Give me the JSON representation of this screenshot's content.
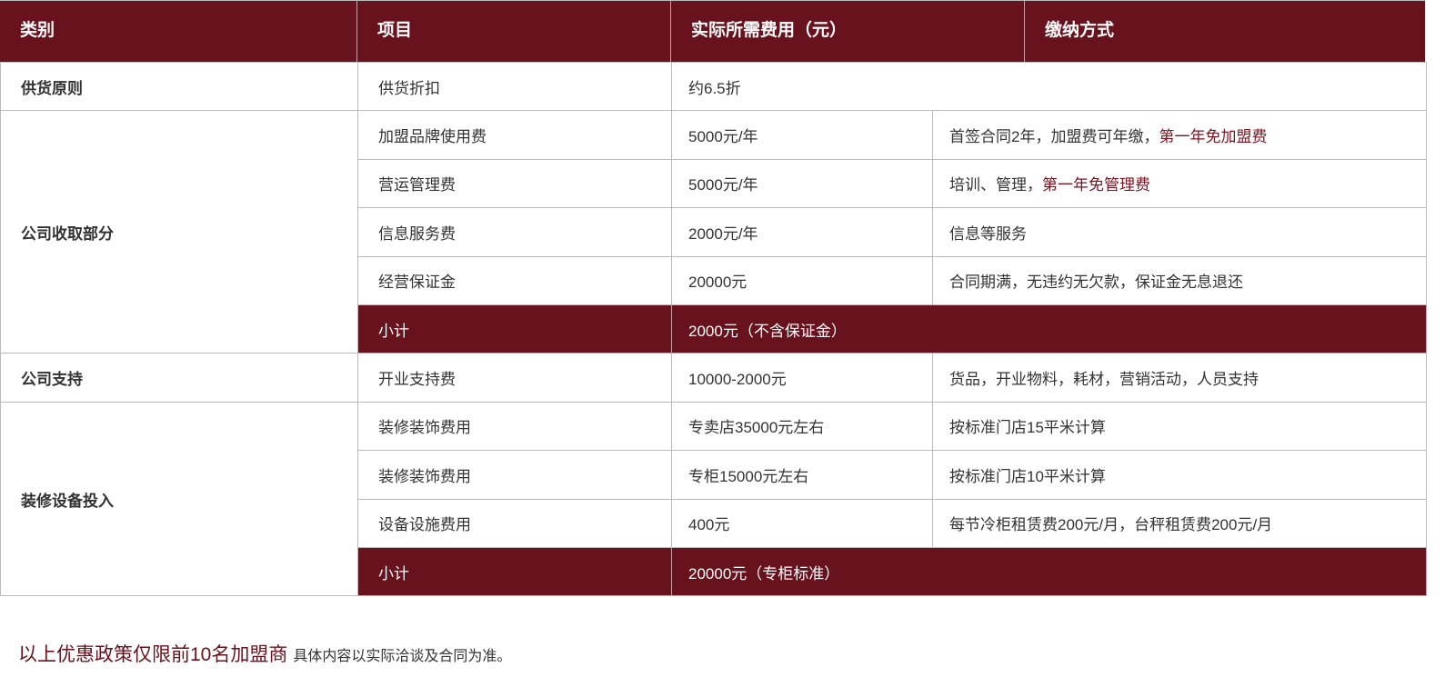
{
  "header": [
    "类别",
    "项目",
    "实际所需费用（元）",
    "缴纳方式"
  ],
  "colors": {
    "accent": "#68121d",
    "highlight": "#7a1421"
  },
  "groups": [
    {
      "category": "供货原则",
      "rows": [
        {
          "item": "供货折扣",
          "cost": "约6.5折",
          "span": true
        }
      ]
    },
    {
      "category": "公司收取部分",
      "rows": [
        {
          "item": "加盟品牌使用费",
          "cost": "5000元/年",
          "pay": "首签合同2年，加盟费可年缴，",
          "pay_highlight": "第一年免加盟费"
        },
        {
          "item": "营运管理费",
          "cost": "5000元/年",
          "pay": "培训、管理，",
          "pay_highlight": "第一年免管理费"
        },
        {
          "item": "信息服务费",
          "cost": "2000元/年",
          "pay": "信息等服务"
        },
        {
          "item": "经营保证金",
          "cost": "20000元",
          "pay": "合同期满，无违约无欠款，保证金无息退还"
        },
        {
          "item": "小计",
          "cost": "2000元（不含保证金）",
          "subtotal": true
        }
      ]
    },
    {
      "category": "公司支持",
      "rows": [
        {
          "item": "开业支持费",
          "cost": "10000-2000元",
          "pay": "货品，开业物料，耗材，营销活动，人员支持"
        }
      ]
    },
    {
      "category": "装修设备投入",
      "rows": [
        {
          "item": "装修装饰费用",
          "cost": "专卖店35000元左右",
          "pay": "按标准门店15平米计算"
        },
        {
          "item": "装修装饰费用",
          "cost": "专柜15000元左右",
          "pay": "按标准门店10平米计算"
        },
        {
          "item": "设备设施费用",
          "cost": "400元",
          "pay": "每节冷柜租赁费200元/月，台秤租赁费200元/月"
        },
        {
          "item": "小计",
          "cost": "20000元（专柜标准）",
          "subtotal": true
        }
      ]
    }
  ],
  "footer": {
    "highlight": "以上优惠政策仅限前10名加盟商",
    "note": "具体内容以实际洽谈及合同为准。"
  }
}
